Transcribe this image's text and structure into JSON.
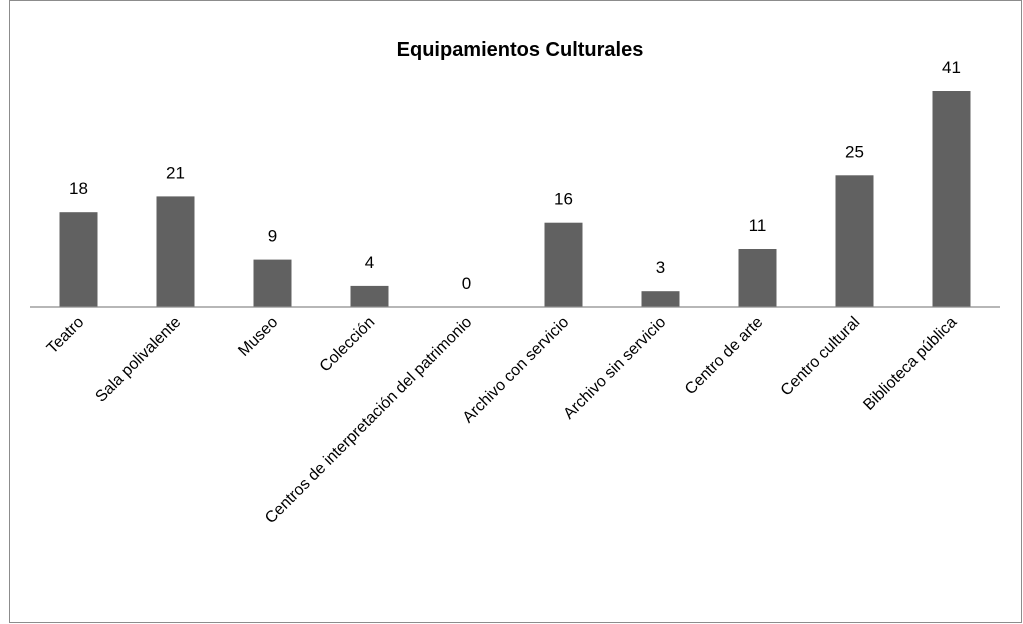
{
  "chart_data": {
    "type": "bar",
    "title": "Equipamientos Culturales",
    "xlabel": "",
    "ylabel": "",
    "categories": [
      "Teatro",
      "Sala polivalente",
      "Museo",
      "Colección",
      "Centros de interpretación del patrimonio",
      "Archivo con servicio",
      "Archivo sin servicio",
      "Centro de arte",
      "Centro cultural",
      "Biblioteca pública"
    ],
    "values": [
      18,
      21,
      9,
      4,
      0,
      16,
      3,
      11,
      25,
      41
    ],
    "ylim": [
      0,
      41
    ],
    "bar_color": "#616161",
    "grid": false,
    "legend": "none"
  }
}
